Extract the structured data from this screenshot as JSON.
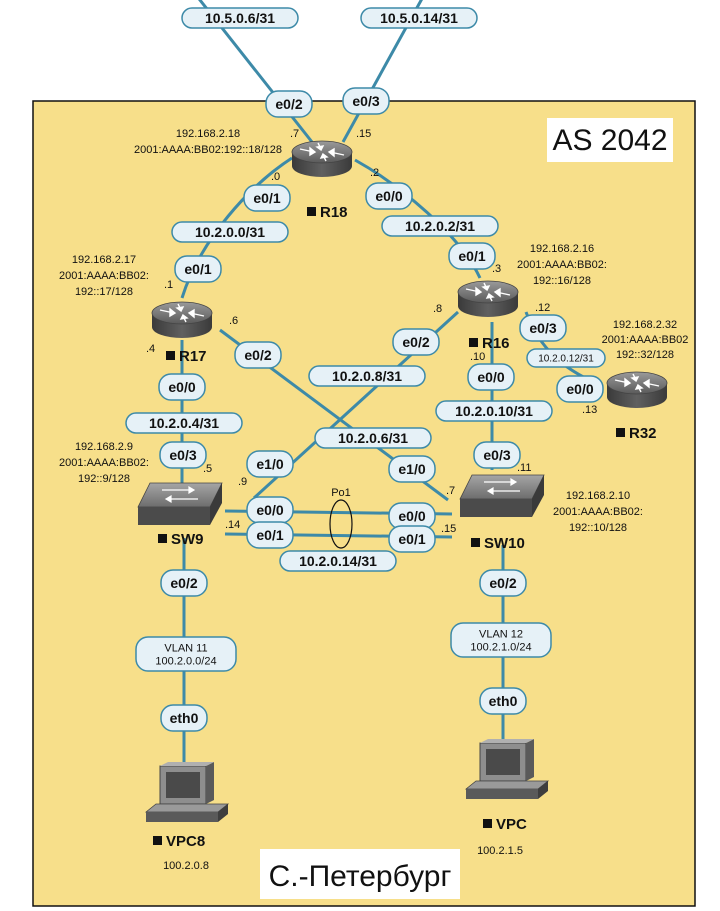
{
  "area": {
    "as_label": "AS 2042",
    "city_label": "С.-Петербург",
    "fill": "#f7df8a",
    "border": "#111111"
  },
  "link_color": "#3d8aa8",
  "devices": {
    "r18": {
      "label": "R18",
      "icon": "router-icon"
    },
    "r17": {
      "label": "R17",
      "icon": "router-icon"
    },
    "r16": {
      "label": "R16",
      "icon": "router-icon"
    },
    "r32": {
      "label": "R32",
      "icon": "router-icon"
    },
    "sw9": {
      "label": "SW9",
      "icon": "switch-icon"
    },
    "sw10": {
      "label": "SW10",
      "icon": "switch-icon"
    },
    "vpc8": {
      "label": "VPC8",
      "icon": "pc-icon"
    },
    "vpc": {
      "label": "VPC",
      "icon": "pc-icon"
    }
  },
  "device_addresses": {
    "r18": [
      "192.168.2.18",
      "2001:AAAA:BB02:192::18/128"
    ],
    "r17": [
      "192.168.2.17",
      "2001:AAAA:BB02:",
      "192::17/128"
    ],
    "r16": [
      "192.168.2.16",
      "2001:AAAA:BB02:",
      "192::16/128"
    ],
    "r32": [
      "192.168.2.32",
      "2001:AAAA:BB02",
      "192::32/128"
    ],
    "sw9": [
      "192.168.2.9",
      "2001:AAAA:BB02:",
      "192::9/128"
    ],
    "sw10": [
      "192.168.2.10",
      "2001:AAAA:BB02:",
      "192::10/128"
    ],
    "vpc8": [
      "100.2.0.8"
    ],
    "vpc": [
      "100.2.1.5"
    ]
  },
  "subnets": {
    "up_left": "10.5.0.6/31",
    "up_right": "10.5.0.14/31",
    "r18_r17": "10.2.0.0/31",
    "r18_r16": "10.2.0.2/31",
    "r17_sw9": "10.2.0.4/31",
    "r17_sw10": "10.2.0.6/31",
    "r16_sw9": "10.2.0.8/31",
    "r16_sw10": "10.2.0.10/31",
    "r16_r32": "10.2.0.12/31",
    "sw9_sw10": "10.2.0.14/31",
    "po": "Po1"
  },
  "vlans": {
    "left": [
      "VLAN 11",
      "100.2.0.0/24"
    ],
    "right": [
      "VLAN 12",
      "100.2.1.0/24"
    ]
  },
  "interfaces": {
    "r18_e02": "e0/2",
    "r18_e03": "e0/3",
    "r18_e01": "e0/1",
    "r18_e00": "e0/0",
    "r17_e01": "e0/1",
    "r17_e02": "e0/2",
    "r17_e00": "e0/0",
    "r16_e01": "e0/1",
    "r16_e02": "e0/2",
    "r16_e03": "e0/3",
    "r16_e00": "e0/0",
    "r32_e00": "e0/0",
    "sw9_e03": "e0/3",
    "sw9_e10": "e1/0",
    "sw9_e00": "e0/0",
    "sw9_e01": "e0/1",
    "sw9_e02": "e0/2",
    "sw10_e03": "e0/3",
    "sw10_e10": "e1/0",
    "sw10_e00": "e0/0",
    "sw10_e01": "e0/1",
    "sw10_e02": "e0/2",
    "vpc8_eth0": "eth0",
    "vpc_eth0": "eth0"
  },
  "octets": {
    "r18_7": ".7",
    "r18_15": ".15",
    "r18_0": ".0",
    "r18_2": ".2",
    "r17_1": ".1",
    "r17_6": ".6",
    "r17_4": ".4",
    "r16_3": ".3",
    "r16_8": ".8",
    "r16_12": ".12",
    "r16_10": ".10",
    "r32_13": ".13",
    "sw9_5": ".5",
    "sw9_9": ".9",
    "sw9_14": ".14",
    "sw10_11": ".11",
    "sw10_7": ".7",
    "sw10_15": ".15"
  }
}
